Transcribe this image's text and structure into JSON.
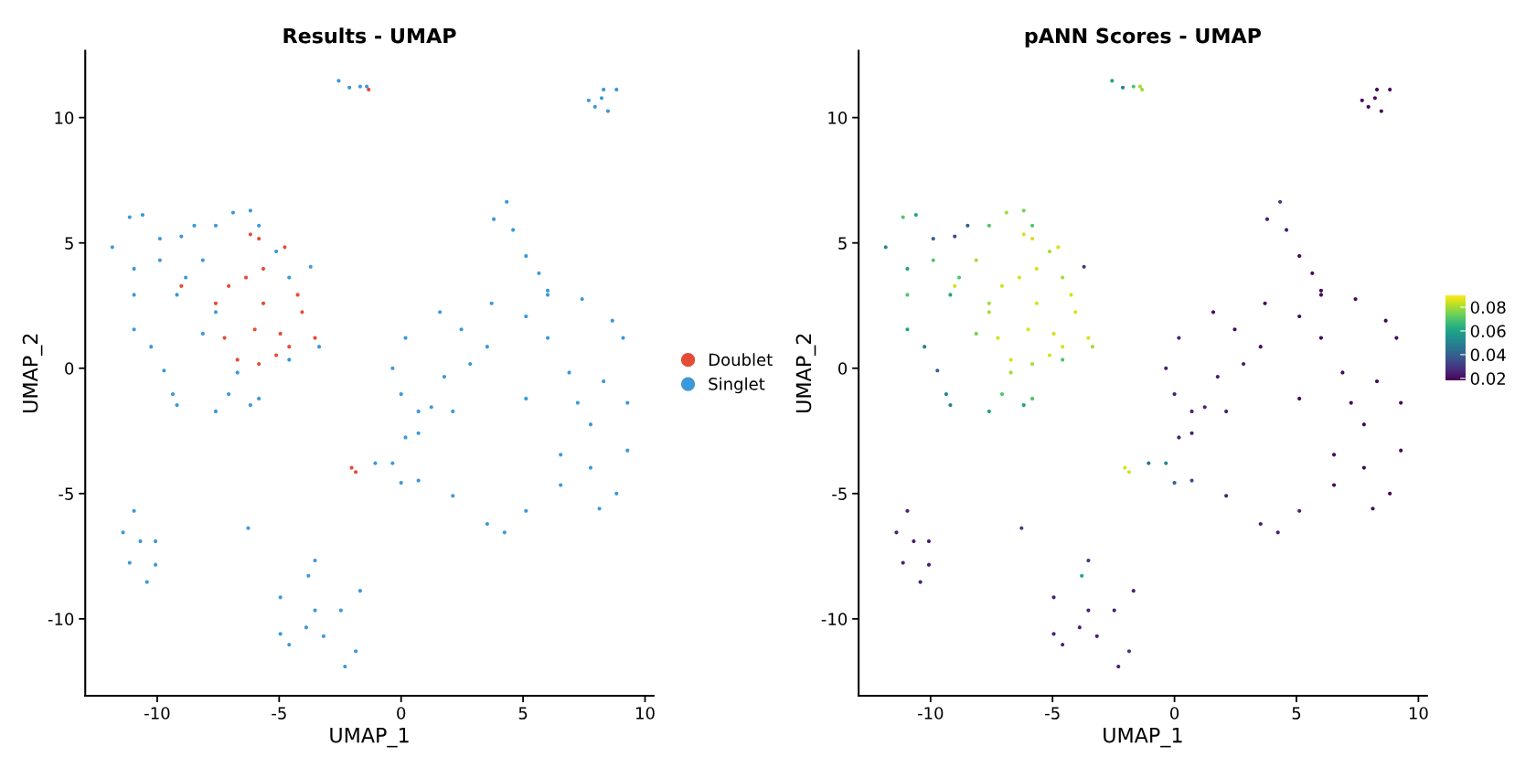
{
  "chart_data": [
    {
      "type": "scatter",
      "title": "Results - UMAP",
      "xlabel": "UMAP_1",
      "ylabel": "UMAP_2",
      "xlim": [
        -12.95,
        10.35
      ],
      "ylim": [
        -13.07,
        12.67
      ],
      "xticks": [
        -10,
        -5,
        0,
        5,
        10
      ],
      "yticks": [
        -10,
        -5,
        0,
        5,
        10
      ],
      "grid": false,
      "legend": "right",
      "marker": "circle",
      "series": [
        {
          "name": "Doublet",
          "color": "#e64b35",
          "x": [
            -6.18,
            -5.83,
            -4.77,
            -6.36,
            -5.65,
            -7.07,
            -7.6,
            -9.01,
            -7.24,
            -6.71,
            -5.83,
            -5.65,
            -4.24,
            -4.06,
            -3.53,
            -4.59,
            -5.12,
            -6.0,
            -4.95,
            -2.03,
            -1.86,
            -1.33
          ],
          "values": [
            5.34,
            5.17,
            4.83,
            3.62,
            3.97,
            3.28,
            2.59,
            3.28,
            1.21,
            0.34,
            0.17,
            2.59,
            2.93,
            2.24,
            1.21,
            0.86,
            0.52,
            1.55,
            1.38,
            -3.97,
            -4.14,
            11.12
          ]
        },
        {
          "name": "Singlet",
          "color": "#3b99d9",
          "x": [
            -2.56,
            -2.12,
            -1.68,
            -1.41,
            7.69,
            8.3,
            8.83,
            8.48,
            7.95,
            8.22,
            -11.84,
            -11.13,
            -10.6,
            -9.89,
            -8.48,
            -6.89,
            -6.18,
            -5.83,
            -3.71,
            -3.36,
            -4.59,
            -5.83,
            -6.18,
            -7.07,
            -7.6,
            -9.19,
            -9.72,
            -10.25,
            -10.95,
            -10.95,
            -10.95,
            -9.89,
            -8.83,
            -8.13,
            -7.6,
            -8.13,
            -6.71,
            -9.19,
            -4.59,
            -5.12,
            -9.01,
            -7.6,
            -9.36,
            -6.27,
            -10.95,
            -11.4,
            -11.13,
            -10.42,
            -10.07,
            -10.07,
            -10.69,
            -3.53,
            -3.8,
            -4.95,
            -3.53,
            -1.68,
            -2.47,
            -4.95,
            -4.59,
            -2.3,
            -1.86,
            -3.18,
            -3.89,
            4.33,
            3.8,
            4.59,
            5.12,
            5.65,
            6.01,
            -0.35,
            0.18,
            1.59,
            3.71,
            6.01,
            7.42,
            8.66,
            9.1,
            9.28,
            9.28,
            8.83,
            8.13,
            6.54,
            5.12,
            4.24,
            3.53,
            2.12,
            0.71,
            0.0,
            -0.35,
            0.18,
            0.71,
            0.71,
            0.0,
            1.24,
            1.77,
            2.83,
            2.12,
            3.53,
            6.01,
            6.89,
            7.77,
            6.54,
            7.77,
            7.24,
            8.3,
            2.47,
            5.12,
            -1.06,
            5.12
          ],
          "values": [
            11.47,
            11.2,
            11.24,
            11.24,
            10.69,
            11.12,
            11.12,
            10.26,
            10.43,
            10.78,
            4.83,
            6.03,
            6.12,
            5.17,
            5.69,
            6.21,
            6.29,
            5.69,
            4.05,
            0.86,
            0.34,
            -1.21,
            -1.47,
            -1.03,
            -1.72,
            -1.47,
            -0.09,
            0.86,
            1.55,
            2.93,
            3.97,
            4.31,
            3.62,
            4.31,
            2.24,
            1.38,
            -0.17,
            2.93,
            3.62,
            4.66,
            5.26,
            5.69,
            -1.03,
            -6.38,
            -5.69,
            -6.55,
            -7.76,
            -8.53,
            -6.9,
            -7.84,
            -6.9,
            -7.67,
            -8.28,
            -9.14,
            -9.66,
            -8.88,
            -9.66,
            -10.6,
            -11.03,
            -11.9,
            -11.29,
            -10.69,
            -10.34,
            6.64,
            5.95,
            5.52,
            4.48,
            3.79,
            3.1,
            0.0,
            1.21,
            2.24,
            2.59,
            2.93,
            2.76,
            1.9,
            1.21,
            -1.38,
            -3.28,
            -5.0,
            -5.6,
            -4.66,
            -5.69,
            -6.55,
            -6.21,
            -5.09,
            -4.48,
            -4.57,
            -3.79,
            -2.76,
            -2.59,
            -1.72,
            -1.03,
            -1.55,
            -0.34,
            0.17,
            -1.72,
            0.86,
            1.21,
            -0.17,
            -2.24,
            -3.45,
            -3.97,
            -1.38,
            -0.52,
            1.55,
            2.07,
            -3.79,
            -1.21
          ]
        }
      ]
    },
    {
      "type": "scatter",
      "title": "pANN Scores - UMAP",
      "xlabel": "UMAP_1",
      "ylabel": "UMAP_2",
      "xlim": [
        -12.95,
        10.35
      ],
      "ylim": [
        -13.07,
        12.67
      ],
      "xticks": [
        -10,
        -5,
        0,
        5,
        10
      ],
      "yticks": [
        -10,
        -5,
        0,
        5,
        10
      ],
      "grid": false,
      "marker": "circle",
      "clim": [
        0.0185,
        0.0897
      ],
      "cticks": [
        0.02,
        0.04,
        0.06,
        0.08
      ],
      "series": [
        {
          "x": [
            -2.56,
            -2.12,
            -1.68,
            -1.41,
            7.69,
            8.3,
            8.83,
            8.48,
            7.95,
            8.22,
            -11.84,
            -11.13,
            -10.6,
            -9.89,
            -8.48,
            -6.89,
            -6.18,
            -5.83,
            -3.71,
            -3.36,
            -4.59,
            -5.83,
            -6.18,
            -7.07,
            -7.6,
            -9.19,
            -9.72,
            -10.25,
            -10.95,
            -10.95,
            -10.95,
            -9.89,
            -8.83,
            -8.13,
            -7.6,
            -8.13,
            -6.71,
            -9.19,
            -4.59,
            -5.12,
            -9.01,
            -7.6,
            -9.36,
            -6.27,
            -10.95,
            -11.4,
            -11.13,
            -10.42,
            -10.07,
            -10.07,
            -10.69,
            -3.53,
            -3.8,
            -4.95,
            -3.53,
            -1.68,
            -2.47,
            -4.95,
            -4.59,
            -2.3,
            -1.86,
            -3.18,
            -3.89,
            4.33,
            3.8,
            4.59,
            5.12,
            5.65,
            6.01,
            -0.35,
            0.18,
            1.59,
            3.71,
            6.01,
            7.42,
            8.66,
            9.1,
            9.28,
            9.28,
            8.83,
            8.13,
            6.54,
            5.12,
            4.24,
            3.53,
            2.12,
            0.71,
            0.0,
            -0.35,
            0.18,
            0.71,
            0.71,
            0.0,
            1.24,
            1.77,
            2.83,
            2.12,
            3.53,
            6.01,
            6.89,
            7.77,
            6.54,
            7.77,
            7.24,
            8.3,
            2.47,
            5.12,
            -1.06,
            5.12,
            -6.18,
            -5.83,
            -4.77,
            -6.36,
            -5.65,
            -7.07,
            -7.6,
            -9.01,
            -7.24,
            -6.71,
            -5.83,
            -5.65,
            -4.24,
            -4.06,
            -3.53,
            -4.59,
            -5.12,
            -6.0,
            -4.95,
            -2.03,
            -1.86,
            -1.33
          ],
          "values": [
            11.47,
            11.2,
            11.24,
            11.24,
            10.69,
            11.12,
            11.12,
            10.26,
            10.43,
            10.78,
            4.83,
            6.03,
            6.12,
            5.17,
            5.69,
            6.21,
            6.29,
            5.69,
            4.05,
            0.86,
            0.34,
            -1.21,
            -1.47,
            -1.03,
            -1.72,
            -1.47,
            -0.09,
            0.86,
            1.55,
            2.93,
            3.97,
            4.31,
            3.62,
            4.31,
            2.24,
            1.38,
            -0.17,
            2.93,
            3.62,
            4.66,
            5.26,
            5.69,
            -1.03,
            -6.38,
            -5.69,
            -6.55,
            -7.76,
            -8.53,
            -6.9,
            -7.84,
            -6.9,
            -7.67,
            -8.28,
            -9.14,
            -9.66,
            -8.88,
            -9.66,
            -10.6,
            -11.03,
            -11.9,
            -11.29,
            -10.69,
            -10.34,
            6.64,
            5.95,
            5.52,
            4.48,
            3.79,
            3.1,
            0.0,
            1.21,
            2.24,
            2.59,
            2.93,
            2.76,
            1.9,
            1.21,
            -1.38,
            -3.28,
            -5.0,
            -5.6,
            -4.66,
            -5.69,
            -6.55,
            -6.21,
            -5.09,
            -4.48,
            -4.57,
            -3.79,
            -2.76,
            -2.59,
            -1.72,
            -1.03,
            -1.55,
            -0.34,
            0.17,
            -1.72,
            0.86,
            1.21,
            -0.17,
            -2.24,
            -3.45,
            -3.97,
            -1.38,
            -0.52,
            1.55,
            2.07,
            -3.79,
            -1.21,
            5.34,
            5.17,
            4.83,
            3.62,
            3.97,
            3.28,
            2.59,
            3.28,
            1.21,
            0.34,
            0.17,
            2.59,
            2.93,
            2.24,
            1.21,
            0.86,
            0.52,
            1.55,
            1.38,
            -3.97,
            -4.14,
            11.12
          ],
          "cvalues": [
            0.06,
            0.05,
            0.07,
            0.08,
            0.02,
            0.02,
            0.02,
            0.02,
            0.02,
            0.02,
            0.05,
            0.07,
            0.06,
            0.04,
            0.04,
            0.08,
            0.075,
            0.07,
            0.03,
            0.08,
            0.07,
            0.07,
            0.06,
            0.07,
            0.06,
            0.05,
            0.04,
            0.05,
            0.06,
            0.07,
            0.06,
            0.07,
            0.07,
            0.08,
            0.08,
            0.075,
            0.08,
            0.06,
            0.08,
            0.08,
            0.035,
            0.07,
            0.05,
            0.03,
            0.025,
            0.025,
            0.025,
            0.025,
            0.025,
            0.025,
            0.025,
            0.03,
            0.06,
            0.025,
            0.025,
            0.025,
            0.025,
            0.025,
            0.025,
            0.025,
            0.03,
            0.025,
            0.025,
            0.03,
            0.025,
            0.025,
            0.02,
            0.02,
            0.02,
            0.025,
            0.025,
            0.02,
            0.02,
            0.02,
            0.02,
            0.02,
            0.02,
            0.02,
            0.02,
            0.02,
            0.02,
            0.02,
            0.025,
            0.025,
            0.025,
            0.025,
            0.035,
            0.04,
            0.05,
            0.025,
            0.025,
            0.025,
            0.025,
            0.025,
            0.025,
            0.025,
            0.025,
            0.02,
            0.02,
            0.02,
            0.02,
            0.02,
            0.02,
            0.02,
            0.02,
            0.02,
            0.02,
            0.045,
            0.02,
            0.085,
            0.085,
            0.085,
            0.085,
            0.085,
            0.085,
            0.08,
            0.085,
            0.085,
            0.085,
            0.08,
            0.085,
            0.085,
            0.085,
            0.085,
            0.085,
            0.085,
            0.085,
            0.085,
            0.085,
            0.085,
            0.08
          ]
        }
      ]
    }
  ]
}
